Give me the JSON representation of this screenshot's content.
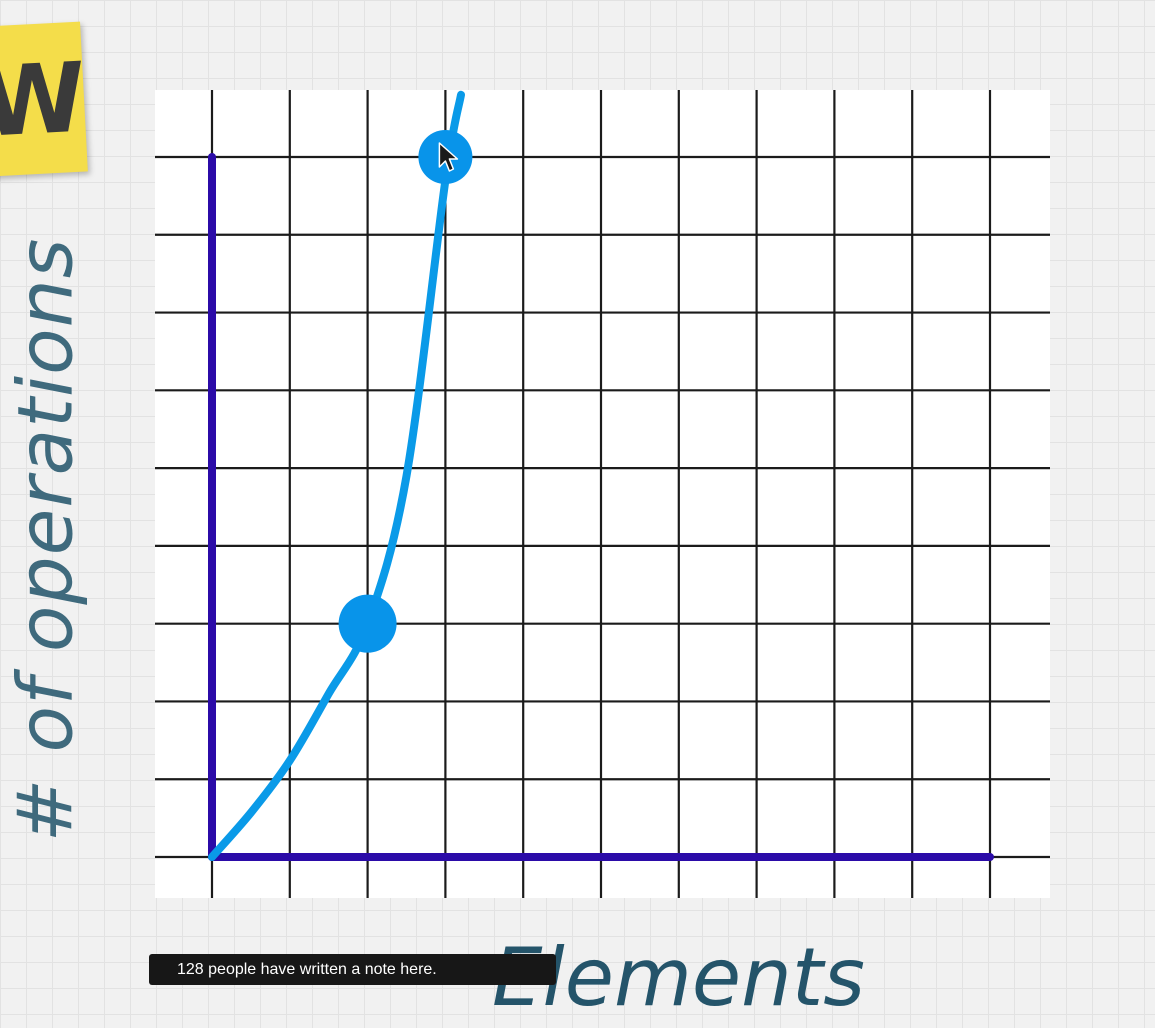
{
  "sticky_note": {
    "text": "W",
    "color": "#f4dd4a"
  },
  "note_banner": {
    "text": "128 people have written a note here."
  },
  "chart_data": {
    "type": "line",
    "title": "",
    "xlabel": "Elements",
    "ylabel": "# of operations",
    "xlim": [
      0,
      10
    ],
    "ylim": [
      0,
      9
    ],
    "grid": true,
    "axis_color": "#2b0ba8",
    "series": [
      {
        "color": "#0a9ae8",
        "x": [
          0,
          0.5,
          1,
          1.5,
          2,
          2.5,
          3,
          3.2
        ],
        "y": [
          0,
          0.57,
          1.24,
          2.1,
          3.0,
          4.9,
          8.7,
          9.8
        ]
      }
    ],
    "highlighted_points": [
      {
        "x": 2,
        "y": 3
      },
      {
        "x": 3,
        "y": 9
      }
    ],
    "cursor_icon": "mouse-pointer-icon"
  }
}
